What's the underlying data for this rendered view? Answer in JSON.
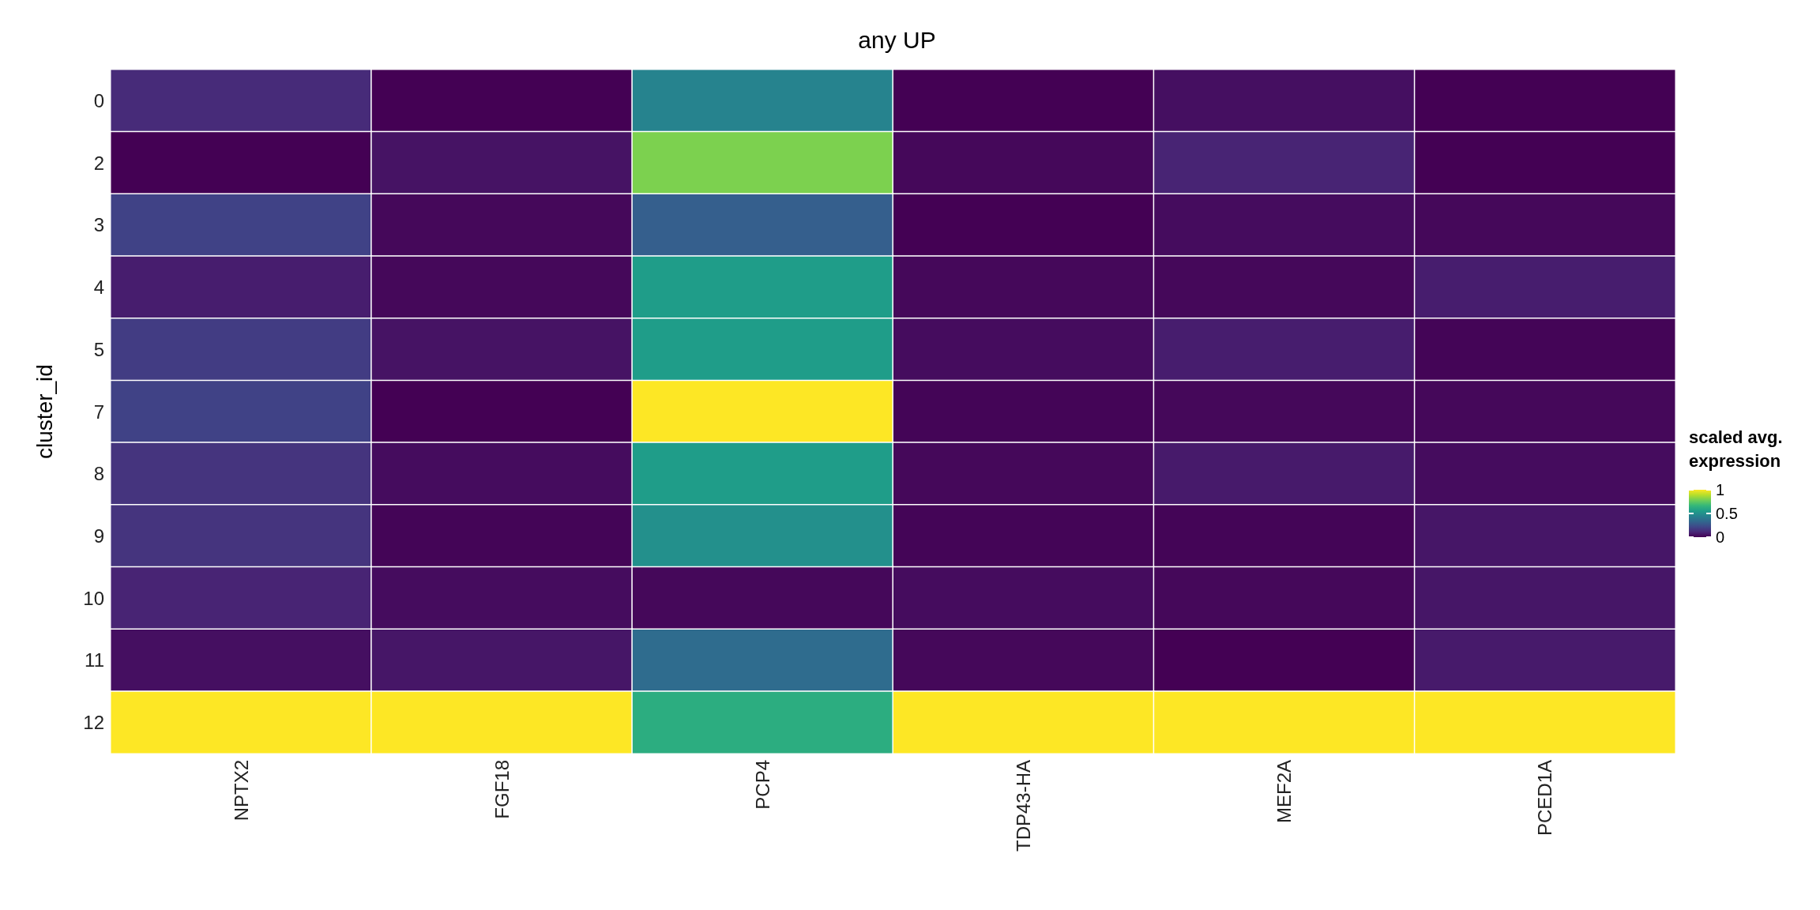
{
  "chart_data": {
    "type": "heatmap",
    "title": "any UP",
    "ylabel": "cluster_id",
    "legend_title": "scaled avg. expression",
    "categories": [
      "NPTX2",
      "FGF18",
      "PCP4",
      "TDP43-HA",
      "MEF2A",
      "PCED1A"
    ],
    "y_categories": [
      "0",
      "2",
      "3",
      "4",
      "5",
      "7",
      "8",
      "9",
      "10",
      "11",
      "12"
    ],
    "cells": [
      [
        0.12,
        0.0,
        0.45,
        0.0,
        0.04,
        0.0
      ],
      [
        0.0,
        0.05,
        0.8,
        0.02,
        0.1,
        0.0
      ],
      [
        0.2,
        0.02,
        0.3,
        0.0,
        0.03,
        0.02
      ],
      [
        0.08,
        0.02,
        0.55,
        0.02,
        0.02,
        0.08
      ],
      [
        0.18,
        0.05,
        0.55,
        0.03,
        0.08,
        0.01
      ],
      [
        0.2,
        0.0,
        1.0,
        0.01,
        0.02,
        0.02
      ],
      [
        0.15,
        0.03,
        0.55,
        0.02,
        0.07,
        0.03
      ],
      [
        0.15,
        0.01,
        0.5,
        0.01,
        0.01,
        0.06
      ],
      [
        0.1,
        0.03,
        0.02,
        0.03,
        0.02,
        0.06
      ],
      [
        0.04,
        0.06,
        0.35,
        0.02,
        0.0,
        0.07
      ],
      [
        1.0,
        1.0,
        0.62,
        1.0,
        1.0,
        1.0
      ]
    ],
    "clim": [
      0,
      1
    ],
    "cticks": [
      0,
      0.5,
      1
    ]
  }
}
